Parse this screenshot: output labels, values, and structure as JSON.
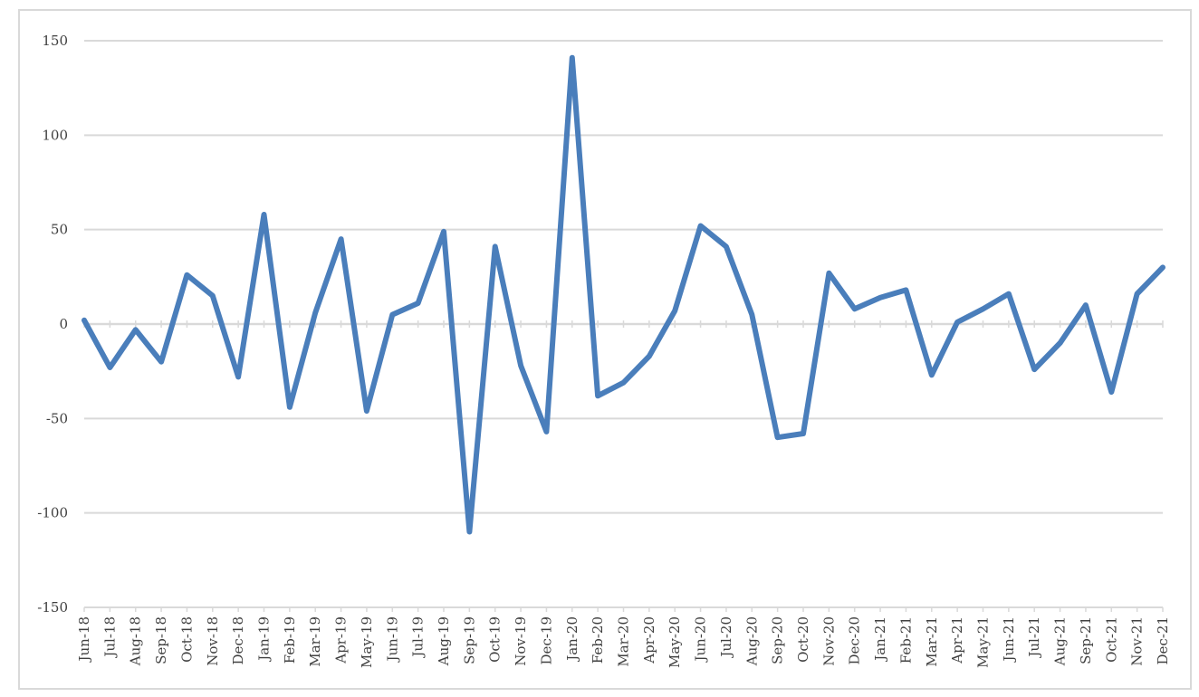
{
  "chart_data": {
    "type": "line",
    "title": "",
    "xlabel": "",
    "ylabel": "",
    "ylim": [
      -150,
      150
    ],
    "yticks": [
      150,
      100,
      50,
      0,
      -50,
      -100,
      -150
    ],
    "ytick_labels": [
      "150",
      "100",
      "50",
      "0",
      "-50",
      "-100",
      "-150"
    ],
    "grid": true,
    "line_color": "#4a7ebb",
    "grid_color": "#d9d9d9",
    "categories": [
      "Jun-18",
      "Jul-18",
      "Aug-18",
      "Sep-18",
      "Oct-18",
      "Nov-18",
      "Dec-18",
      "Jan-19",
      "Feb-19",
      "Mar-19",
      "Apr-19",
      "May-19",
      "Jun-19",
      "Jul-19",
      "Aug-19",
      "Sep-19",
      "Oct-19",
      "Nov-19",
      "Dec-19",
      "Jan-20",
      "Feb-20",
      "Mar-20",
      "Apr-20",
      "May-20",
      "Jun-20",
      "Jul-20",
      "Aug-20",
      "Sep-20",
      "Oct-20",
      "Nov-20",
      "Dec-20",
      "Jan-21",
      "Feb-21",
      "Mar-21",
      "Apr-21",
      "May-21",
      "Jun-21",
      "Jul-21",
      "Aug-21",
      "Sep-21",
      "Oct-21",
      "Nov-21",
      "Dec-21"
    ],
    "series": [
      {
        "values": [
          2,
          -23,
          -3,
          -20,
          26,
          15,
          -28,
          58,
          -44,
          6,
          45,
          -46,
          5,
          11,
          49,
          -110,
          41,
          -22,
          -57,
          141,
          -38,
          -31,
          -17,
          7,
          52,
          41,
          5,
          -60,
          -58,
          27,
          8,
          14,
          18,
          -27,
          1,
          8,
          16,
          -24,
          -10,
          10,
          -36,
          16,
          30
        ]
      }
    ]
  }
}
